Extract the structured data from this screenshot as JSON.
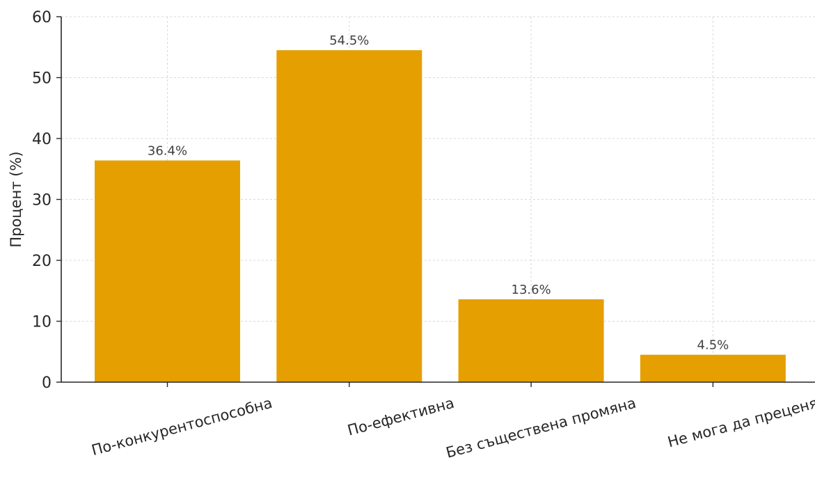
{
  "chart_data": {
    "type": "bar",
    "categories": [
      "По-конкурентоспособна",
      "По-ефективна",
      "Без съществена промяна",
      "Не мога да преценя"
    ],
    "values": [
      36.4,
      54.5,
      13.6,
      4.5
    ],
    "data_labels": [
      "36.4%",
      "54.5%",
      "13.6%",
      "4.5%"
    ],
    "title": "",
    "xlabel": "",
    "ylabel": "Процент (%)",
    "ylim": [
      0,
      60
    ],
    "yticks": [
      0,
      10,
      20,
      30,
      40,
      50,
      60
    ],
    "grid": true,
    "bar_color": "#E69F00",
    "label_rotation_deg": -15
  }
}
